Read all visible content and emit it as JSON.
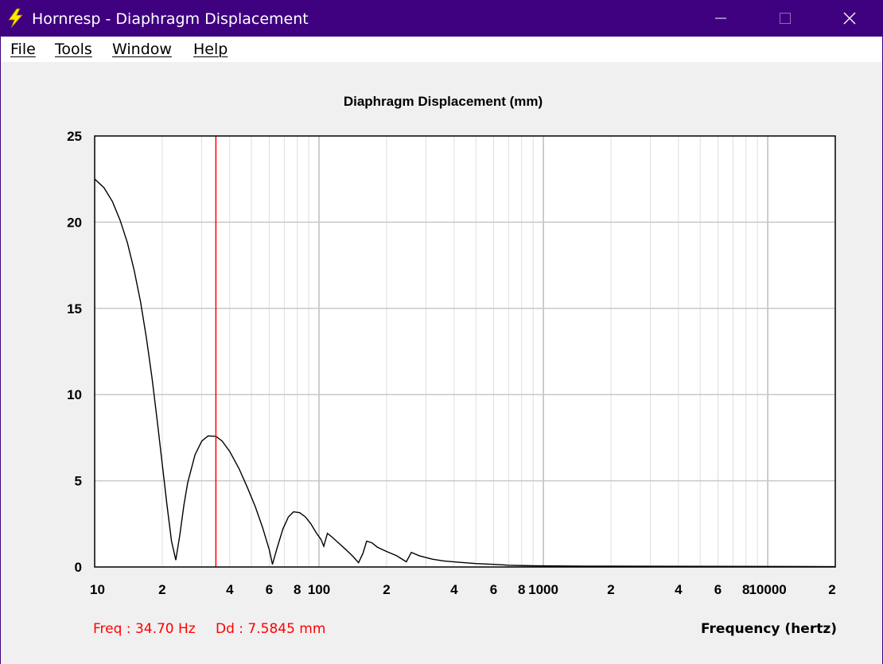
{
  "window": {
    "title": "Hornresp - Diaphragm Displacement",
    "minimize_icon": "minimize-icon",
    "maximize_icon": "maximize-icon",
    "close_icon": "close-icon",
    "app_icon": "lightning-icon"
  },
  "menu": {
    "items": [
      {
        "label": "File"
      },
      {
        "label": "Tools"
      },
      {
        "label": "Window"
      },
      {
        "label": "Help"
      }
    ]
  },
  "readout": {
    "freq": "Freq : 34.70 Hz",
    "dd": "Dd : 7.5845 mm"
  },
  "colors": {
    "titlebar": "#3f0080",
    "trace": "#000000",
    "cursor": "#ff0000",
    "grid": "#c8c8c8"
  },
  "chart_data": {
    "type": "line",
    "title": "Diaphragm Displacement (mm)",
    "xlabel": "Frequency (hertz)",
    "ylabel": "",
    "xscale": "log",
    "xlim": [
      10,
      20000
    ],
    "ylim": [
      0,
      25
    ],
    "grid": true,
    "yticks": [
      "0",
      "5",
      "10",
      "15",
      "20",
      "25"
    ],
    "xtick_labels": [
      {
        "v": 10,
        "t": "10"
      },
      {
        "v": 20,
        "t": "2"
      },
      {
        "v": 40,
        "t": "4"
      },
      {
        "v": 60,
        "t": "6"
      },
      {
        "v": 80,
        "t": "8"
      },
      {
        "v": 100,
        "t": "100"
      },
      {
        "v": 200,
        "t": "2"
      },
      {
        "v": 400,
        "t": "4"
      },
      {
        "v": 600,
        "t": "6"
      },
      {
        "v": 800,
        "t": "8"
      },
      {
        "v": 1000,
        "t": "1000"
      },
      {
        "v": 2000,
        "t": "2"
      },
      {
        "v": 4000,
        "t": "4"
      },
      {
        "v": 6000,
        "t": "6"
      },
      {
        "v": 8000,
        "t": "8"
      },
      {
        "v": 10000,
        "t": "10000"
      },
      {
        "v": 20000,
        "t": "2"
      }
    ],
    "cursor_x": 34.7,
    "series": [
      {
        "values": [
          [
            10,
            22.5
          ],
          [
            11,
            22.0
          ],
          [
            12,
            21.2
          ],
          [
            13,
            20.1
          ],
          [
            14,
            18.8
          ],
          [
            15,
            17.2
          ],
          [
            16,
            15.4
          ],
          [
            17,
            13.3
          ],
          [
            18,
            11.0
          ],
          [
            19,
            8.5
          ],
          [
            20,
            6.0
          ],
          [
            21,
            3.6
          ],
          [
            22,
            1.5
          ],
          [
            23,
            0.4
          ],
          [
            24,
            1.9
          ],
          [
            25,
            3.6
          ],
          [
            26,
            4.9
          ],
          [
            28,
            6.5
          ],
          [
            30,
            7.3
          ],
          [
            32,
            7.6
          ],
          [
            34.7,
            7.58
          ],
          [
            37,
            7.3
          ],
          [
            40,
            6.7
          ],
          [
            44,
            5.7
          ],
          [
            48,
            4.6
          ],
          [
            52,
            3.5
          ],
          [
            56,
            2.3
          ],
          [
            60,
            1.0
          ],
          [
            62,
            0.15
          ],
          [
            65,
            1.1
          ],
          [
            69,
            2.2
          ],
          [
            73,
            2.9
          ],
          [
            77,
            3.2
          ],
          [
            82,
            3.15
          ],
          [
            87,
            2.9
          ],
          [
            92,
            2.5
          ],
          [
            97,
            2.0
          ],
          [
            102,
            1.6
          ],
          [
            105,
            1.2
          ],
          [
            109,
            1.95
          ],
          [
            114,
            1.75
          ],
          [
            122,
            1.4
          ],
          [
            132,
            1.0
          ],
          [
            142,
            0.6
          ],
          [
            150,
            0.25
          ],
          [
            157,
            0.8
          ],
          [
            163,
            1.5
          ],
          [
            172,
            1.4
          ],
          [
            182,
            1.15
          ],
          [
            200,
            0.9
          ],
          [
            222,
            0.65
          ],
          [
            245,
            0.3
          ],
          [
            258,
            0.85
          ],
          [
            280,
            0.65
          ],
          [
            320,
            0.45
          ],
          [
            360,
            0.35
          ],
          [
            420,
            0.27
          ],
          [
            500,
            0.2
          ],
          [
            600,
            0.15
          ],
          [
            700,
            0.1
          ],
          [
            900,
            0.07
          ],
          [
            1500,
            0.05
          ],
          [
            3000,
            0.04
          ],
          [
            10000,
            0.03
          ],
          [
            20000,
            0.02
          ]
        ]
      }
    ]
  }
}
